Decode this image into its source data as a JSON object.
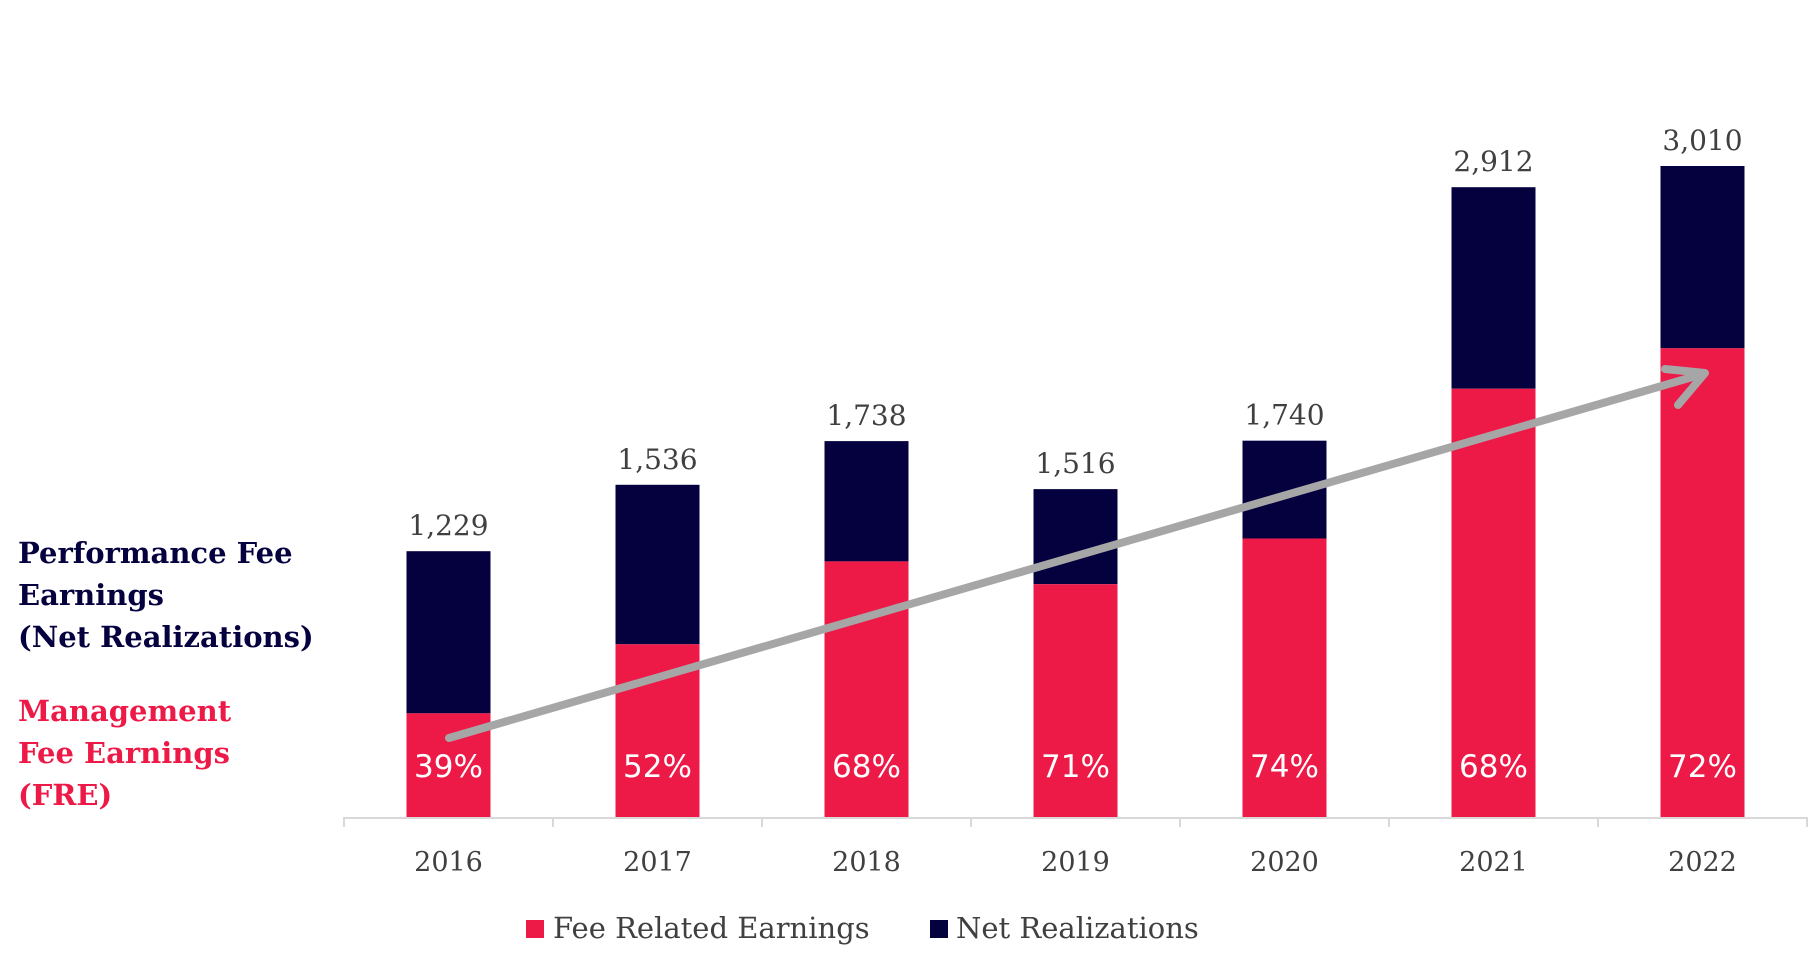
{
  "side_labels": {
    "performance": [
      "Performance Fee",
      "Earnings",
      "(Net Realizations)"
    ],
    "management": [
      "Management",
      "Fee Earnings",
      "(FRE)"
    ]
  },
  "colors": {
    "fre": "#ED1A48",
    "net": "#05003E",
    "arrow": "#A6A6A6",
    "axis": "#D9D9D9",
    "text": "#404040"
  },
  "chart_data": {
    "type": "bar",
    "stacked": true,
    "categories": [
      "2016",
      "2017",
      "2018",
      "2019",
      "2020",
      "2021",
      "2022"
    ],
    "totals": [
      1229,
      1536,
      1738,
      1516,
      1740,
      2912,
      3010
    ],
    "total_labels": [
      "1,229",
      "1,536",
      "1,738",
      "1,516",
      "1,740",
      "2,912",
      "3,010"
    ],
    "fre_share_pct": [
      39,
      52,
      68,
      71,
      74,
      68,
      72
    ],
    "fre_share_labels": [
      "39%",
      "52%",
      "68%",
      "71%",
      "74%",
      "68%",
      "72%"
    ],
    "series": [
      {
        "name": "Fee Related Earnings",
        "color": "#ED1A48"
      },
      {
        "name": "Net Realizations",
        "color": "#05003E"
      }
    ],
    "ylim": [
      0,
      3010
    ],
    "grid": false,
    "legend_position": "bottom",
    "annotation": "upward trend arrow"
  }
}
